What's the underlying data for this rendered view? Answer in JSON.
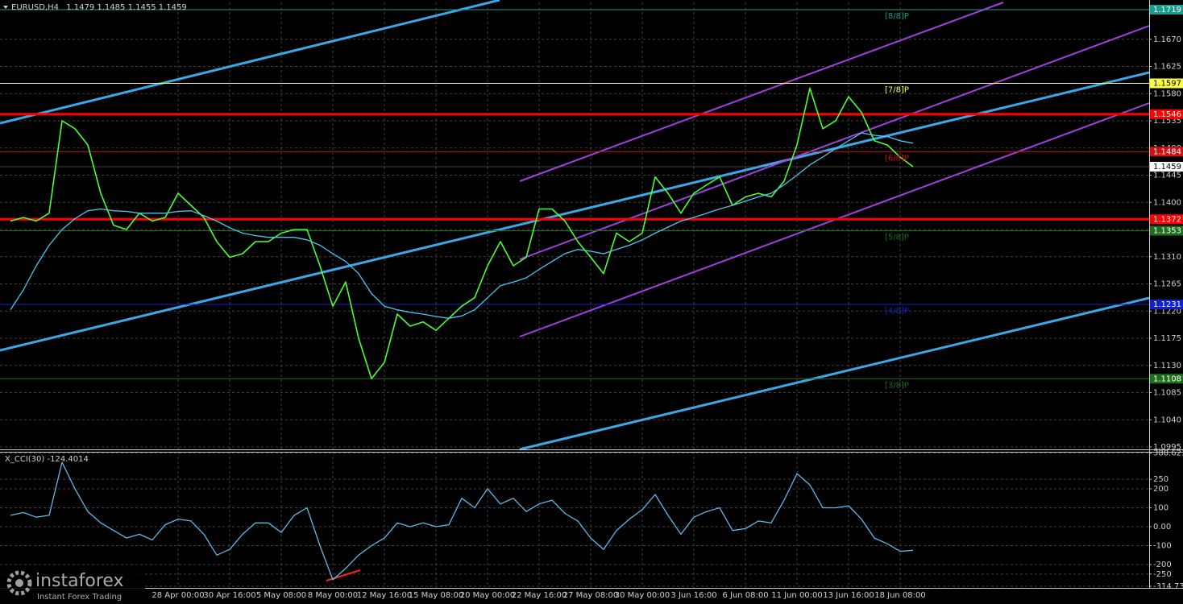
{
  "chart_data": [
    {
      "type": "line",
      "title": "EURUSD,H4",
      "ohlc": [
        1.1479,
        1.1485,
        1.1455,
        1.1459
      ],
      "categories": [
        null,
        null,
        null,
        null,
        null,
        null,
        null,
        null,
        null,
        null,
        null,
        null,
        null,
        "28 Apr 00:00",
        null,
        null,
        null,
        "30 Apr 16:00",
        null,
        null,
        null,
        "5 May 08:00",
        null,
        null,
        null,
        "8 May 00:00",
        null,
        null,
        null,
        "12 May 16:00",
        null,
        null,
        null,
        "15 May 08:00",
        null,
        null,
        null,
        "20 May 00:00",
        null,
        null,
        null,
        "22 May 16:00",
        null,
        null,
        null,
        "27 May 08:00",
        null,
        null,
        null,
        "30 May 00:00",
        null,
        null,
        null,
        "3 Jun 16:00",
        null,
        null,
        null,
        "6 Jun 08:00",
        null,
        null,
        null,
        "11 Jun 00:00",
        null,
        null,
        null,
        "13 Jun 16:00",
        null,
        null,
        null,
        "18 Jun 08:00",
        null
      ],
      "series": [
        {
          "color": "#4cff2e",
          "values": [
            1.1369,
            1.1375,
            1.1369,
            1.1382,
            1.1535,
            1.1522,
            1.1495,
            1.1415,
            1.1362,
            1.1355,
            1.1382,
            1.1369,
            1.1375,
            1.1415,
            1.1395,
            1.1375,
            1.1335,
            1.1309,
            1.1315,
            1.1335,
            1.1335,
            1.1349,
            1.1355,
            1.1355,
            1.1295,
            1.1228,
            1.1268,
            1.1175,
            1.1108,
            1.1135,
            1.1215,
            1.1195,
            1.1202,
            1.1188,
            1.1208,
            1.1228,
            1.1242,
            1.1295,
            1.1335,
            1.1295,
            1.1309,
            1.1389,
            1.1389,
            1.1369,
            1.1335,
            1.1309,
            1.1282,
            1.1349,
            1.1335,
            1.1349,
            1.1442,
            1.1415,
            1.1382,
            1.1415,
            1.1429,
            1.1442,
            1.1395,
            1.1409,
            1.1415,
            1.1409,
            1.1435,
            1.1495,
            1.1589,
            1.1522,
            1.1535,
            1.1575,
            1.1549,
            1.1502,
            1.1495,
            1.1475,
            1.1459
          ]
        },
        {
          "color": "#48c8f0",
          "values": [
            1.1222,
            1.1255,
            1.1295,
            1.1329,
            1.1355,
            1.1373,
            1.1386,
            1.1389,
            1.1386,
            1.1385,
            1.1382,
            1.1382,
            1.1382,
            1.1385,
            1.1386,
            1.1378,
            1.1369,
            1.1358,
            1.1349,
            1.1345,
            1.1342,
            1.1342,
            1.1342,
            1.1338,
            1.1329,
            1.1315,
            1.1302,
            1.1282,
            1.1249,
            1.1228,
            1.1222,
            1.1218,
            1.1215,
            1.1211,
            1.1208,
            1.1212,
            1.1222,
            1.1242,
            1.1262,
            1.1268,
            1.1275,
            1.1289,
            1.1302,
            1.1315,
            1.1322,
            1.1319,
            1.1315,
            1.1322,
            1.1329,
            1.1338,
            1.1349,
            1.1359,
            1.1369,
            1.1375,
            1.1382,
            1.1389,
            1.1395,
            1.1402,
            1.1409,
            1.1415,
            1.1429,
            1.1445,
            1.1462,
            1.1475,
            1.1489,
            1.1502,
            1.1515,
            1.1511,
            1.1509,
            1.1502,
            1.1498
          ]
        }
      ],
      "ylim": [
        1.0991,
        1.1731
      ],
      "yticks": [
        1.0995,
        {
          "value": 1.104,
          "label": "1.1040"
        },
        1.1085,
        {
          "value": 1.113,
          "label": "1.1130"
        },
        1.1175,
        {
          "value": 1.122,
          "label": "1.1220"
        },
        1.1265,
        {
          "value": 1.131,
          "label": "1.1310"
        },
        1.1355,
        {
          "value": 1.14,
          "label": "1.1400"
        },
        1.1445,
        {
          "value": 1.149,
          "label": "1.1490"
        },
        1.1535,
        {
          "value": 1.158,
          "label": "1.1580"
        },
        1.1625,
        {
          "value": 1.167,
          "label": "1.1670"
        }
      ],
      "grid": true,
      "levels": [
        {
          "value": 1.1719,
          "color": "#1a9e8c",
          "label": "[8/8]P"
        },
        {
          "value": 1.1597,
          "color": "#ffff40",
          "label": "[7/8]P"
        },
        {
          "value": 1.1546,
          "color": "#ff0000"
        },
        {
          "value": 1.1484,
          "color": "#d01010",
          "label": "[6/8]P"
        },
        {
          "value": 1.1372,
          "color": "#ff0000"
        },
        {
          "value": 1.1353,
          "color": "#1e6e1e",
          "label": "[5/8]P"
        },
        {
          "value": 1.1231,
          "color": "#1020d0",
          "label": "[4/8]P"
        },
        {
          "value": 1.1108,
          "color": "#1e6e1e",
          "label": "[3/8]P"
        }
      ]
    },
    {
      "type": "line",
      "title": "X_CCI(30)",
      "current": -124.4014,
      "series": [
        {
          "color": "#5fb8e8",
          "values": [
            60,
            75,
            50,
            60,
            340,
            200,
            80,
            20,
            -20,
            -60,
            -40,
            -70,
            10,
            40,
            30,
            -40,
            -150,
            -120,
            -40,
            20,
            20,
            -30,
            60,
            100,
            -100,
            -280,
            -220,
            -150,
            -100,
            -60,
            20,
            0,
            20,
            0,
            10,
            150,
            100,
            200,
            120,
            150,
            80,
            120,
            140,
            70,
            30,
            -60,
            -120,
            -20,
            40,
            90,
            170,
            60,
            -40,
            50,
            80,
            100,
            -20,
            -10,
            30,
            20,
            140,
            280,
            220,
            100,
            100,
            110,
            40,
            -60,
            -90,
            -130,
            -124.4014
          ]
        }
      ],
      "ylim": [
        -323,
        391
      ],
      "yticks": [
        388.6237,
        250,
        200,
        100,
        {
          "value": 0,
          "label": "0.00"
        },
        -100,
        -200,
        -250,
        -314.734
      ],
      "grid": true
    }
  ],
  "watermark": {
    "brand": "instaforex",
    "tagline": "Instant Forex Trading"
  }
}
